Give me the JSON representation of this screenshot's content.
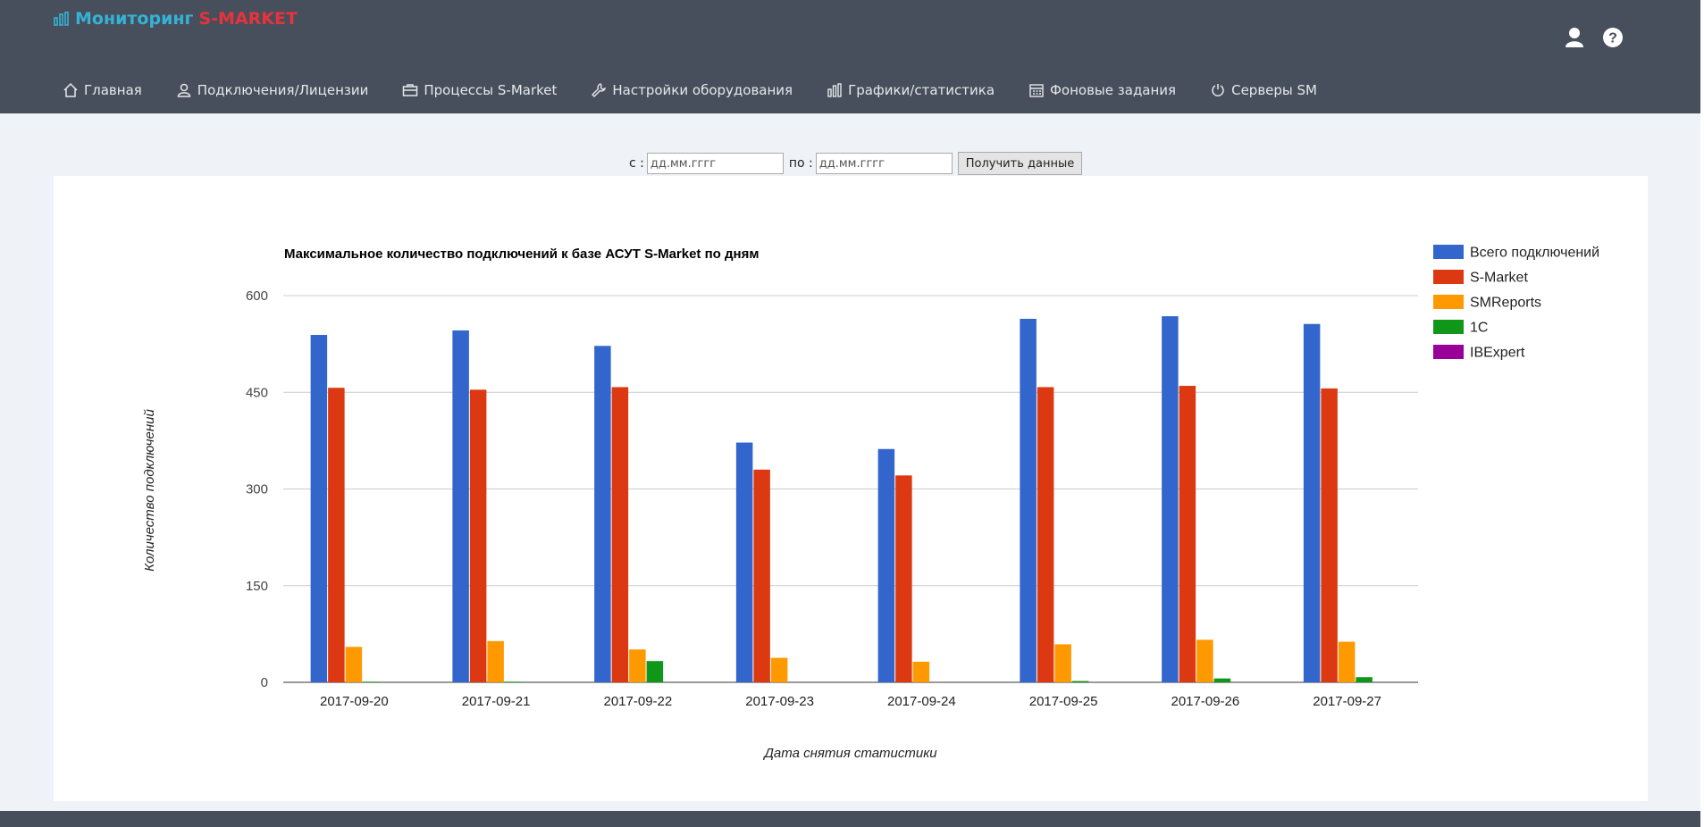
{
  "brand": {
    "title": "Мониторинг",
    "accent": "S-MARKET"
  },
  "nav": [
    {
      "label": "Главная",
      "icon": "home-icon"
    },
    {
      "label": "Подключения/Лицензии",
      "icon": "user-icon"
    },
    {
      "label": "Процессы S-Market",
      "icon": "briefcase-icon"
    },
    {
      "label": "Настройки оборудования",
      "icon": "wrench-icon"
    },
    {
      "label": "Графики/статистика",
      "icon": "bar-chart-icon"
    },
    {
      "label": "Фоновые задания",
      "icon": "calendar-icon"
    },
    {
      "label": "Серверы SM",
      "icon": "power-icon"
    }
  ],
  "filter": {
    "from_label": "с :",
    "to_label": "по :",
    "from_placeholder": "дд.мм.гггг",
    "to_placeholder": "дд.мм.гггг",
    "submit_label": "Получить данные"
  },
  "colors": {
    "header_bg": "#474f5c",
    "brand_blue": "#35b3d6",
    "brand_red": "#e8323c"
  },
  "chart_data": {
    "type": "bar",
    "title": "Максимальное количество подключений к базе АСУТ S-Market по дням",
    "xlabel": "Дата снятия статистики",
    "ylabel": "Количество подключений",
    "ylim": [
      0,
      600
    ],
    "yticks": [
      0,
      150,
      300,
      450,
      600
    ],
    "grid": true,
    "legend": "right",
    "categories": [
      "2017-09-20",
      "2017-09-21",
      "2017-09-22",
      "2017-09-23",
      "2017-09-24",
      "2017-09-25",
      "2017-09-26",
      "2017-09-27"
    ],
    "series": [
      {
        "name": "Всего подключений",
        "color": "#3366cc",
        "values": [
          539,
          546,
          522,
          372,
          362,
          564,
          568,
          556
        ]
      },
      {
        "name": "S-Market",
        "color": "#dc3912",
        "values": [
          457,
          454,
          458,
          330,
          321,
          458,
          460,
          456
        ]
      },
      {
        "name": "SMReports",
        "color": "#ff9900",
        "values": [
          55,
          64,
          51,
          38,
          32,
          59,
          66,
          63
        ]
      },
      {
        "name": "1C",
        "color": "#109618",
        "values": [
          1,
          1,
          33,
          0,
          0,
          2,
          6,
          8
        ]
      },
      {
        "name": "IBExpert",
        "color": "#990099",
        "values": [
          0,
          0,
          0,
          0,
          0,
          0,
          0,
          0
        ]
      }
    ]
  }
}
